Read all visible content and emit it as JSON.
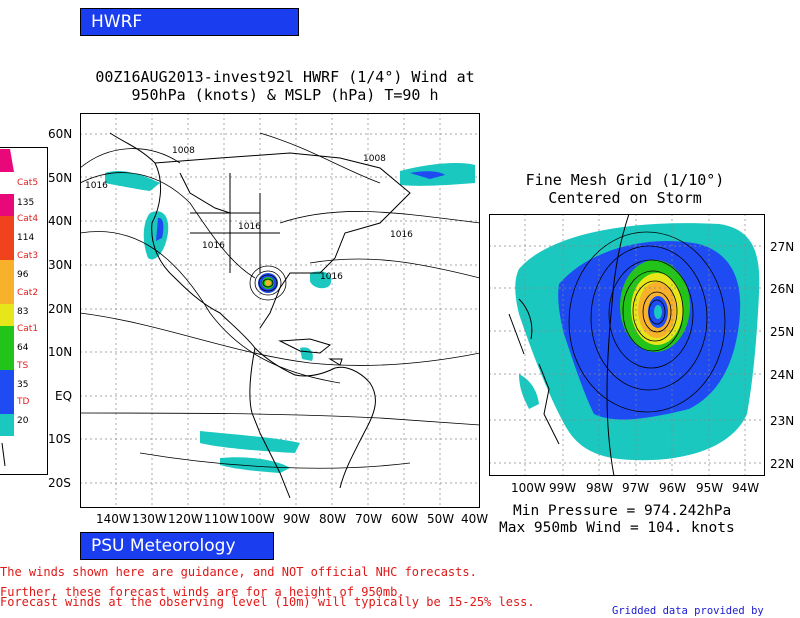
{
  "header": {
    "model_badge": "HWRF"
  },
  "title": {
    "line1": "00Z16AUG2013-invest92l HWRF (1/4°) Wind at",
    "line2": "950hPa (knots) & MSLP (hPa) T=90 h"
  },
  "legend": {
    "items": [
      {
        "category": "Cat5",
        "threshold": "135",
        "color": "#e8087a"
      },
      {
        "category": "Cat4",
        "threshold": "114",
        "color": "#f0421c"
      },
      {
        "category": "Cat3",
        "threshold": "96",
        "color": "#f7b12a"
      },
      {
        "category": "Cat2",
        "threshold": "83",
        "color": "#e6e61a"
      },
      {
        "category": "Cat1",
        "threshold": "64",
        "color": "#22c41a"
      },
      {
        "category": "TS",
        "threshold": "35",
        "color": "#1f4cf2"
      },
      {
        "category": "TD",
        "threshold": "20",
        "color": "#1ac8c0"
      }
    ]
  },
  "main_map": {
    "lat_labels": [
      "60N",
      "50N",
      "40N",
      "30N",
      "20N",
      "10N",
      "EQ",
      "10S",
      "20S"
    ],
    "lon_labels": [
      "140W",
      "130W",
      "120W",
      "110W",
      "100W",
      "90W",
      "80W",
      "70W",
      "60W",
      "50W",
      "40W"
    ],
    "isobar_labels": [
      "1008",
      "1008",
      "1016",
      "1016",
      "1016",
      "1016",
      "1016"
    ]
  },
  "inset": {
    "title_line1": "Fine Mesh Grid (1/10°)",
    "title_line2": "Centered on Storm",
    "lat_labels": [
      "27N",
      "26N",
      "25N",
      "24N",
      "23N",
      "22N"
    ],
    "lon_labels": [
      "100W",
      "99W",
      "98W",
      "97W",
      "96W",
      "95W",
      "94W"
    ]
  },
  "stats": {
    "min_pressure": "Min Pressure = 974.242hPa",
    "max_wind": "Max 950mb Wind = 104. knots"
  },
  "footer": {
    "org_badge": "PSU Meteorology",
    "disclaimer1": "The winds shown here are guidance, and NOT official NHC forecasts.",
    "disclaimer2": "Further, these forecast winds are for a height of 950mb.",
    "disclaimer3": "Forecast winds at the observing level (10m) will typically be 15-25% less.",
    "credit": "Gridded data provided by NCEP."
  }
}
